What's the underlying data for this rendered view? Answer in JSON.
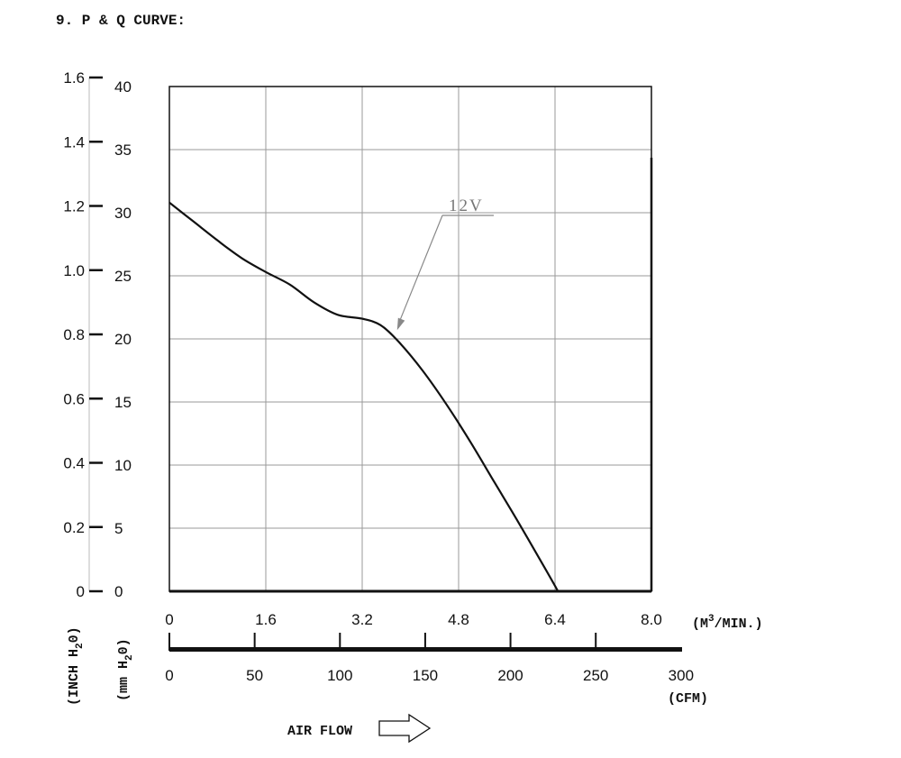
{
  "page_title": "9. P & Q CURVE:",
  "chart_data": {
    "type": "line",
    "x_cmm_ticks": [
      "0",
      "1.6",
      "3.2",
      "4.8",
      "6.4",
      "8.0"
    ],
    "x_cmm_unit_pre": "(M",
    "x_cmm_unit_sup": "3",
    "x_cmm_unit_post": "/MIN.)",
    "x_cfm_ticks": [
      "0",
      "50",
      "100",
      "150",
      "200",
      "250",
      "300"
    ],
    "x_cfm_unit": "(CFM)",
    "xlim_cmm": [
      0,
      8.0
    ],
    "xlim_cfm": [
      0,
      300
    ],
    "y_inch_ticks": [
      "0",
      "0.2",
      "0.4",
      "0.6",
      "0.8",
      "1.0",
      "1.2",
      "1.4",
      "1.6"
    ],
    "y_mm_ticks": [
      "0",
      "5",
      "10",
      "15",
      "20",
      "25",
      "30",
      "35",
      "40"
    ],
    "ylim_mm": [
      0,
      40
    ],
    "ylim_inch": [
      0,
      1.6
    ],
    "y_inch_label": {
      "pre": "(INCH H",
      "sub": "2",
      "post": "0)"
    },
    "y_mm_label": {
      "pre": "(mm H",
      "sub": "2",
      "post": "0)"
    },
    "grid": true,
    "series": [
      {
        "name": "12V",
        "x_cmm": [
          0,
          0.4,
          0.8,
          1.2,
          1.6,
          2.0,
          2.4,
          2.8,
          3.2,
          3.5,
          3.8,
          4.2,
          4.6,
          5.0,
          5.4,
          5.8,
          6.2,
          6.45
        ],
        "y_mm": [
          30.8,
          29.3,
          27.8,
          26.4,
          25.3,
          24.3,
          22.9,
          21.9,
          21.6,
          21.1,
          19.8,
          17.5,
          14.8,
          11.8,
          8.6,
          5.4,
          2.1,
          0
        ]
      }
    ],
    "annotation": {
      "text": "12V",
      "points_to_x_cmm": 3.78,
      "points_to_y_mm": 20.7
    },
    "footer_label": "AIR FLOW"
  }
}
